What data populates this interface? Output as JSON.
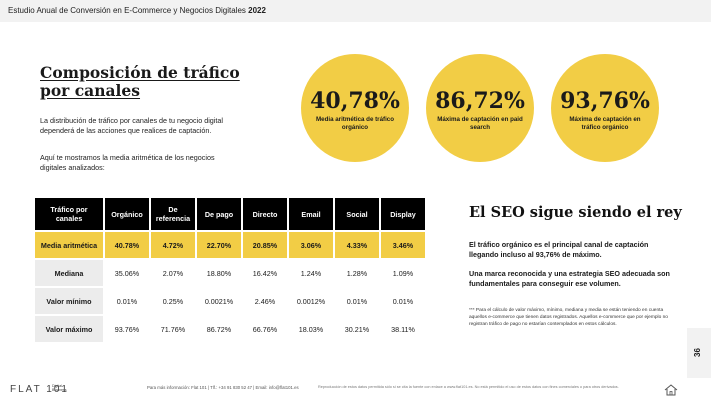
{
  "header": {
    "title": "Estudio Anual de Conversión en E-Commerce y Negocios Digitales",
    "year": "2022"
  },
  "left": {
    "title_line1": "Composición de tráfico",
    "title_line2": "por canales",
    "paragraph1": "La distribución de tráfico por canales de tu negocio digital dependerá de las acciones que realices de captación.",
    "paragraph2": "Aquí te mostramos la media aritmética de los negocios digitales analizados:"
  },
  "circles": [
    {
      "value": "40,78%",
      "label": "Media aritmética de tráfico orgánico"
    },
    {
      "value": "86,72%",
      "label": "Máxima de captación en paid search"
    },
    {
      "value": "93,76%",
      "label": "Máxima de captación en tráfico orgánico"
    }
  ],
  "table": {
    "headers": [
      "Tráfico por canales",
      "Orgánico",
      "De referencia",
      "De pago",
      "Directo",
      "Email",
      "Social",
      "Display"
    ],
    "rows": [
      {
        "label": "Media aritmética",
        "values": [
          "40.78%",
          "4.72%",
          "22.70%",
          "20.85%",
          "3.06%",
          "4.33%",
          "3.46%"
        ]
      },
      {
        "label": "Mediana",
        "values": [
          "35.06%",
          "2.07%",
          "18.80%",
          "16.42%",
          "1.24%",
          "1.28%",
          "1.09%"
        ]
      },
      {
        "label": "Valor mínimo",
        "values": [
          "0.01%",
          "0.25%",
          "0.0021%",
          "2.46%",
          "0.0012%",
          "0.01%",
          "0.01%"
        ]
      },
      {
        "label": "Valor máximo",
        "values": [
          "93.76%",
          "71.76%",
          "86.72%",
          "66.76%",
          "18.03%",
          "30.21%",
          "38.11%"
        ]
      }
    ]
  },
  "seo": {
    "title": "El SEO sigue siendo el rey",
    "paragraph1": "El tráfico orgánico es el principal canal de captación llegando incluso al 93,76% de máximo.",
    "paragraph2": "Una marca reconocida y una estrategia SEO adecuada son fundamentales para conseguir ese volumen.",
    "note": "*** Para el cálculo de valor máximo, mínimo, mediana y media se están teniendo en cuenta aquellos e-commerce que tienen datos registrados. Aquellos e-commerce que por ejemplo no registran tráfico de pago no estarían contemplados en estos cálculos."
  },
  "page_number": "36",
  "footer": {
    "logo": "FLAT 101",
    "logo_sub": "Digital Business",
    "info": "Para más información: Flat 101  |  Tlf.: +34 91 830 52 47  |  Email: info@flat101.es",
    "legal": "Reproducción de estos datos permitida sólo si se cita la fuente con enlace a www.flat101.es. No está permitido el uso de estos datos con fines comerciales o para otros derivados."
  },
  "colors": {
    "accent": "#f2cd45",
    "header_cell": "#000000",
    "label_cell": "#ececec"
  },
  "icons": {
    "home": "home-icon"
  }
}
